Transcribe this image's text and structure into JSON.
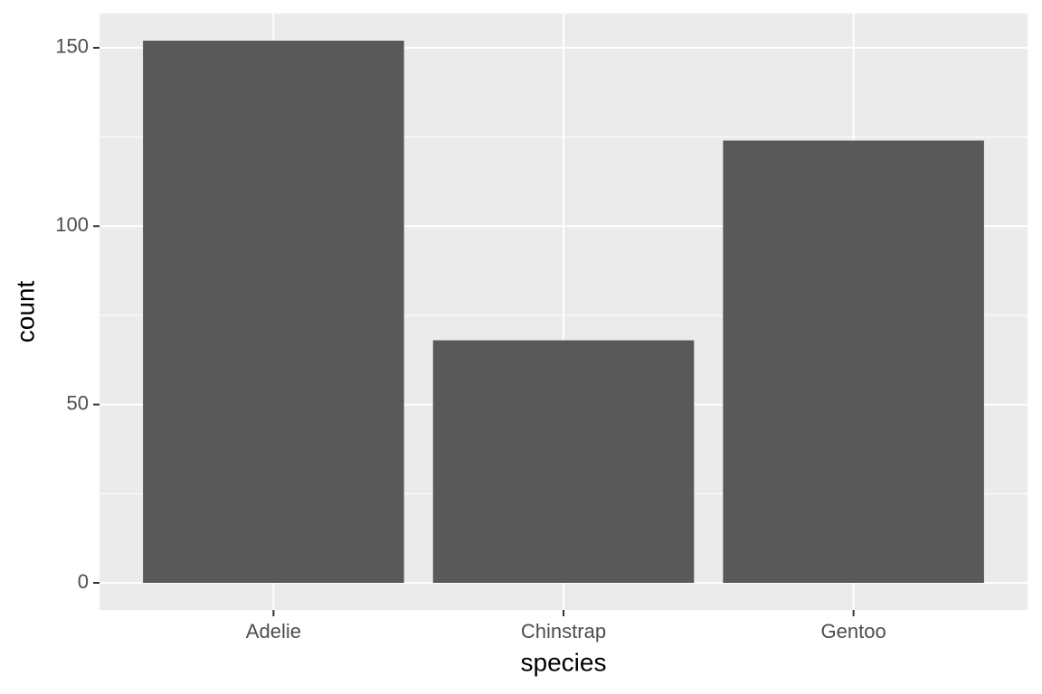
{
  "chart_data": {
    "type": "bar",
    "x_label": "species",
    "y_label": "count",
    "categories": [
      "Adelie",
      "Chinstrap",
      "Gentoo"
    ],
    "values": [
      152,
      68,
      124
    ],
    "color": "#595959",
    "ylim": [
      -7.6,
      159.6
    ],
    "yticks": [
      0,
      50,
      100,
      150
    ],
    "grid": true,
    "minor_grid": true,
    "panel_background": "#ebebeb",
    "grid_color": "#ffffff"
  }
}
